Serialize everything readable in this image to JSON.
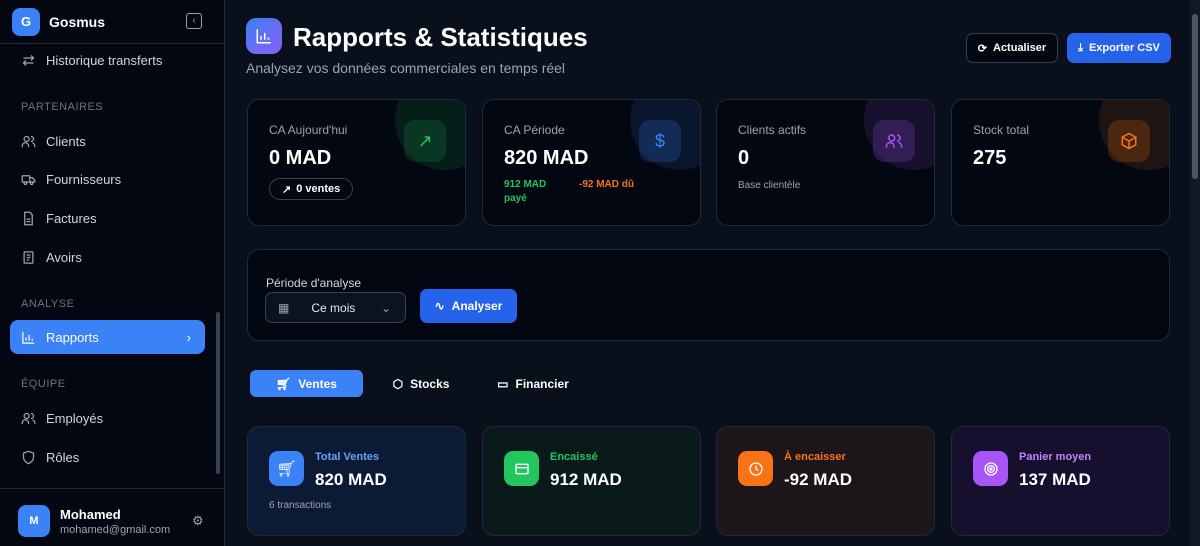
{
  "sidebar": {
    "brand": {
      "initial": "G",
      "name": "Gosmus"
    },
    "items": [
      {
        "label": "Historique transferts",
        "icon": "arrows-transfer-icon"
      },
      {
        "label": "Clients",
        "icon": "users-icon"
      },
      {
        "label": "Fournisseurs",
        "icon": "truck-icon"
      },
      {
        "label": "Factures",
        "icon": "file-text-icon"
      },
      {
        "label": "Avoirs",
        "icon": "receipt-icon"
      },
      {
        "label": "Rapports",
        "icon": "bar-chart-icon",
        "active": true
      },
      {
        "label": "Employés",
        "icon": "users-icon"
      },
      {
        "label": "Rôles",
        "icon": "shield-icon"
      }
    ],
    "sections": {
      "partenaires": "PARTENAIRES",
      "analyse": "ANALYSE",
      "equipe": "ÉQUIPE"
    },
    "user": {
      "initial": "M",
      "name": "Mohamed",
      "email": "mohamed@gmail.com"
    }
  },
  "header": {
    "title": "Rapports & Statistiques",
    "subtitle": "Analysez vos données commerciales en temps réel",
    "refresh_label": "Actualiser",
    "export_label": "Exporter CSV"
  },
  "stats": [
    {
      "label": "CA Aujourd'hui",
      "value": "0 MAD",
      "pill": "0 ventes",
      "color": "#22c55e"
    },
    {
      "label": "CA Période",
      "value": "820 MAD",
      "paid": "912 MAD payé",
      "due": "-92 MAD dû",
      "color": "#3b82f6"
    },
    {
      "label": "Clients actifs",
      "value": "0",
      "note": "Base clientèle",
      "color": "#a855f7"
    },
    {
      "label": "Stock total",
      "value": "275",
      "color": "#f97316"
    }
  ],
  "period": {
    "label": "Période d'analyse",
    "selected": "Ce mois",
    "analyse_label": "Analyser"
  },
  "tabs": [
    {
      "label": "Ventes",
      "active": true
    },
    {
      "label": "Stocks"
    },
    {
      "label": "Financier"
    }
  ],
  "kpis": [
    {
      "label": "Total Ventes",
      "value": "820 MAD",
      "note": "6 transactions",
      "color": "#3b82f6"
    },
    {
      "label": "Encaissé",
      "value": "912 MAD",
      "color": "#22c55e"
    },
    {
      "label": "À encaisser",
      "value": "-92 MAD",
      "color": "#f97316"
    },
    {
      "label": "Panier moyen",
      "value": "137 MAD",
      "color": "#a855f7"
    }
  ]
}
